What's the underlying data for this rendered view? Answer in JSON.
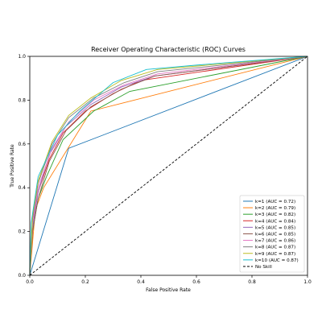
{
  "chart_data": {
    "type": "line",
    "title": "Receiver Operating Characteristic (ROC) Curves",
    "xlabel": "False Positive Rate",
    "ylabel": "True Positive Rate",
    "xlim": [
      0.0,
      1.0
    ],
    "ylim": [
      0.0,
      1.0
    ],
    "xticks": [
      "0.0",
      "0.2",
      "0.4",
      "0.6",
      "0.8",
      "1.0"
    ],
    "yticks": [
      "0.0",
      "0.2",
      "0.4",
      "0.6",
      "0.8",
      "1.0"
    ],
    "grid": false,
    "legend_position": "lower-right",
    "series": [
      {
        "name": "k=1 (AUC = 0.72)",
        "color": "#1f77b4",
        "dash": "solid",
        "points": [
          [
            0,
            0
          ],
          [
            0.14,
            0.58
          ],
          [
            1,
            1
          ]
        ]
      },
      {
        "name": "k=2 (AUC = 0.79)",
        "color": "#ff7f0e",
        "dash": "solid",
        "points": [
          [
            0,
            0
          ],
          [
            0.02,
            0.3
          ],
          [
            0.05,
            0.4
          ],
          [
            0.22,
            0.75
          ],
          [
            1,
            1
          ]
        ]
      },
      {
        "name": "k=3 (AUC = 0.82)",
        "color": "#2ca02c",
        "dash": "solid",
        "points": [
          [
            0,
            0
          ],
          [
            0.01,
            0.2
          ],
          [
            0.03,
            0.35
          ],
          [
            0.06,
            0.45
          ],
          [
            0.12,
            0.62
          ],
          [
            0.23,
            0.75
          ],
          [
            0.36,
            0.84
          ],
          [
            1,
            1
          ]
        ]
      },
      {
        "name": "k=4 (AUC = 0.84)",
        "color": "#d62728",
        "dash": "solid",
        "points": [
          [
            0,
            0
          ],
          [
            0.01,
            0.25
          ],
          [
            0.03,
            0.38
          ],
          [
            0.07,
            0.53
          ],
          [
            0.12,
            0.65
          ],
          [
            0.2,
            0.75
          ],
          [
            0.3,
            0.83
          ],
          [
            0.4,
            0.89
          ],
          [
            1,
            1
          ]
        ]
      },
      {
        "name": "k=5 (AUC = 0.85)",
        "color": "#9467bd",
        "dash": "solid",
        "points": [
          [
            0,
            0
          ],
          [
            0.01,
            0.22
          ],
          [
            0.03,
            0.38
          ],
          [
            0.07,
            0.55
          ],
          [
            0.13,
            0.68
          ],
          [
            0.22,
            0.78
          ],
          [
            0.33,
            0.86
          ],
          [
            0.45,
            0.91
          ],
          [
            1,
            1
          ]
        ]
      },
      {
        "name": "k=6 (AUC = 0.85)",
        "color": "#8c564b",
        "dash": "solid",
        "points": [
          [
            0,
            0
          ],
          [
            0.01,
            0.2
          ],
          [
            0.03,
            0.35
          ],
          [
            0.07,
            0.52
          ],
          [
            0.13,
            0.66
          ],
          [
            0.22,
            0.77
          ],
          [
            0.33,
            0.85
          ],
          [
            0.45,
            0.91
          ],
          [
            1,
            1
          ]
        ]
      },
      {
        "name": "k=7 (AUC = 0.86)",
        "color": "#e377c2",
        "dash": "solid",
        "points": [
          [
            0,
            0
          ],
          [
            0.01,
            0.24
          ],
          [
            0.03,
            0.4
          ],
          [
            0.08,
            0.58
          ],
          [
            0.14,
            0.7
          ],
          [
            0.23,
            0.8
          ],
          [
            0.34,
            0.87
          ],
          [
            0.46,
            0.92
          ],
          [
            1,
            1
          ]
        ]
      },
      {
        "name": "k=8 (AUC = 0.87)",
        "color": "#7f7f7f",
        "dash": "solid",
        "points": [
          [
            0,
            0
          ],
          [
            0.01,
            0.26
          ],
          [
            0.03,
            0.42
          ],
          [
            0.08,
            0.6
          ],
          [
            0.14,
            0.72
          ],
          [
            0.23,
            0.81
          ],
          [
            0.34,
            0.88
          ],
          [
            0.46,
            0.93
          ],
          [
            1,
            1
          ]
        ]
      },
      {
        "name": "k=9 (AUC = 0.87)",
        "color": "#bcbd22",
        "dash": "solid",
        "points": [
          [
            0,
            0
          ],
          [
            0.01,
            0.27
          ],
          [
            0.03,
            0.43
          ],
          [
            0.08,
            0.61
          ],
          [
            0.14,
            0.73
          ],
          [
            0.22,
            0.81
          ],
          [
            0.33,
            0.89
          ],
          [
            0.46,
            0.94
          ],
          [
            1,
            1
          ]
        ]
      },
      {
        "name": "k=10 (AUC = 0.87)",
        "color": "#17becf",
        "dash": "solid",
        "points": [
          [
            0,
            0
          ],
          [
            0.005,
            0.24
          ],
          [
            0.03,
            0.45
          ],
          [
            0.1,
            0.64
          ],
          [
            0.18,
            0.75
          ],
          [
            0.3,
            0.88
          ],
          [
            0.42,
            0.94
          ],
          [
            0.6,
            0.96
          ],
          [
            1,
            1
          ]
        ]
      },
      {
        "name": "No Skill",
        "color": "#000000",
        "dash": "dashed",
        "points": [
          [
            0,
            0
          ],
          [
            1,
            1
          ]
        ]
      }
    ]
  }
}
